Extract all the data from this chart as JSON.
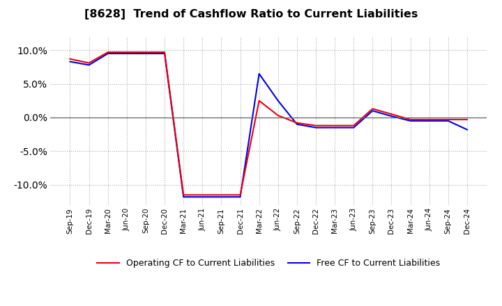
{
  "title": "[8628]  Trend of Cashflow Ratio to Current Liabilities",
  "x_labels": [
    "Sep-19",
    "Dec-19",
    "Mar-20",
    "Jun-20",
    "Sep-20",
    "Dec-20",
    "Mar-21",
    "Jun-21",
    "Sep-21",
    "Dec-21",
    "Mar-22",
    "Jun-22",
    "Sep-22",
    "Dec-22",
    "Mar-23",
    "Jun-23",
    "Sep-23",
    "Dec-23",
    "Mar-24",
    "Jun-24",
    "Sep-24",
    "Dec-24"
  ],
  "operating_cf_vals": [
    8.7,
    8.1,
    9.7,
    9.7,
    9.7,
    9.7,
    -11.5,
    -11.5,
    -11.5,
    -11.5,
    2.5,
    0.3,
    -0.8,
    -1.2,
    -1.2,
    -1.2,
    1.3,
    0.5,
    -0.3,
    -0.3,
    -0.3,
    -0.3
  ],
  "free_cf_vals": [
    8.3,
    7.8,
    9.5,
    9.5,
    9.5,
    9.5,
    -11.8,
    -11.8,
    -11.8,
    -11.8,
    6.5,
    2.5,
    -1.0,
    -1.5,
    -1.5,
    -1.5,
    1.0,
    0.2,
    -0.5,
    -0.5,
    -0.5,
    -1.8
  ],
  "operating_color": "#e8000d",
  "free_color": "#0000e8",
  "ylim": [
    -13,
    12
  ],
  "yticks": [
    -10.0,
    -5.0,
    0.0,
    5.0,
    10.0
  ],
  "background_color": "#ffffff",
  "plot_bg_color": "#ffffff",
  "grid_color": "#aaaaaa",
  "legend_op": "Operating CF to Current Liabilities",
  "legend_free": "Free CF to Current Liabilities"
}
